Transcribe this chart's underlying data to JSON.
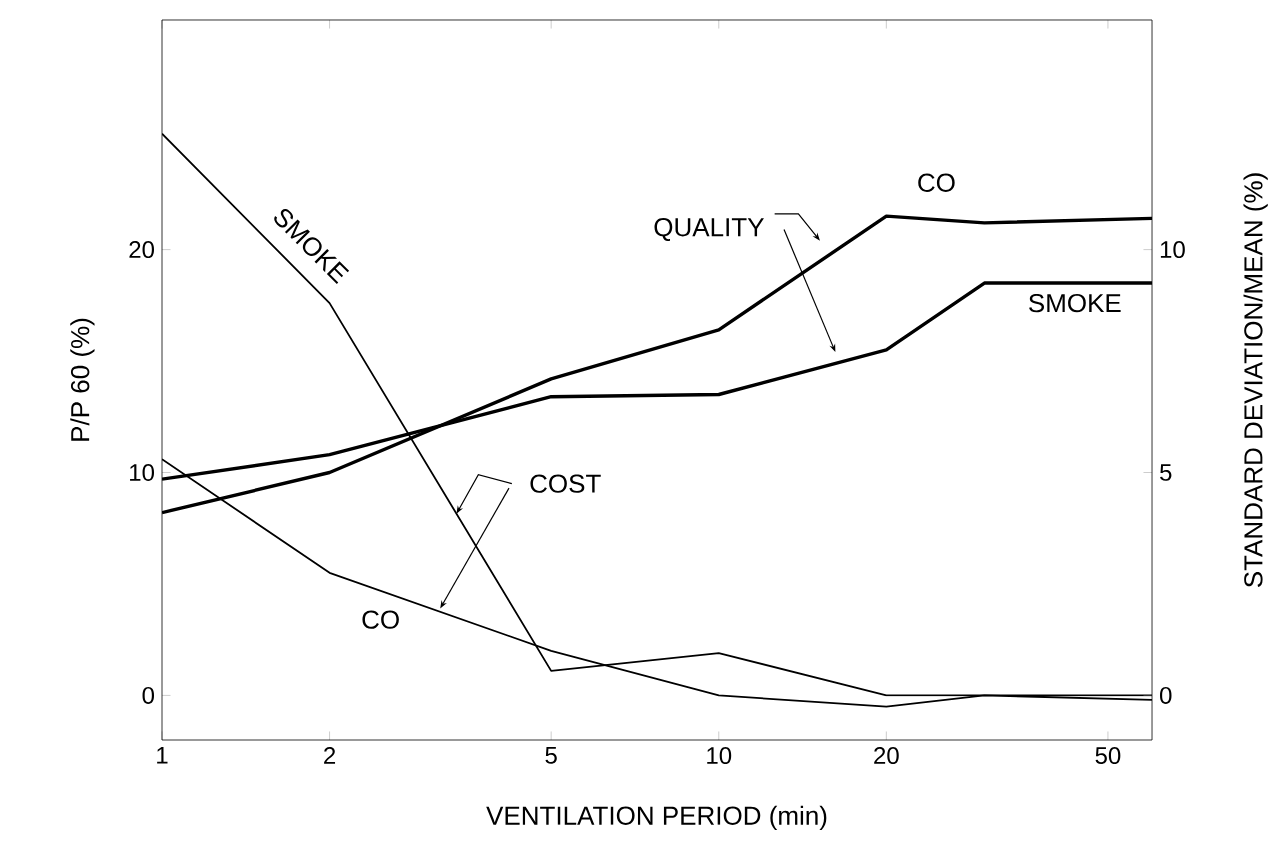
{
  "chart_data": {
    "type": "line",
    "xlabel": "VENTILATION PERIOD (min)",
    "ylabel": "P/P 60 (%)",
    "y2label": "STANDARD DEVIATION/MEAN (%)",
    "log": "x",
    "grid": false,
    "marker": "none",
    "line_style": "solid",
    "xlim": [
      1,
      60
    ],
    "xticks": [
      1,
      2,
      5,
      10,
      20,
      50
    ],
    "ylim": [
      -2,
      30.3
    ],
    "yticks": [
      0,
      10,
      20
    ],
    "y2lim": [
      -1,
      15.15
    ],
    "y2ticks": [
      0,
      5,
      10
    ],
    "series": [
      {
        "color": "#000000",
        "x": [
          1,
          2,
          5,
          10,
          20,
          30,
          60
        ],
        "values": [
          25.2,
          17.6,
          1.1,
          1.9,
          0,
          0,
          0
        ]
      },
      {
        "color": "#000000",
        "x": [
          1,
          2,
          5,
          10,
          20,
          30,
          60
        ],
        "values": [
          10.6,
          5.5,
          2.0,
          0,
          -0.5,
          0,
          -0.2
        ]
      },
      {
        "color": "#000000",
        "axis": "y2",
        "x": [
          1,
          2,
          5,
          10,
          20,
          30,
          60
        ],
        "values": [
          4.1,
          5.0,
          7.1,
          8.2,
          10.75,
          10.6,
          10.7
        ]
      },
      {
        "color": "#000000",
        "axis": "y2",
        "x": [
          1,
          2,
          5,
          10,
          20,
          30,
          60
        ],
        "values": [
          4.85,
          5.4,
          6.7,
          6.75,
          7.75,
          9.25,
          9.25
        ]
      }
    ],
    "annotations": [
      "SMOKE",
      "CO",
      {
        "text": "COST",
        "x": 3.38,
        "y": 8.15
      },
      "QUALITY",
      "CO",
      "SMOKE"
    ]
  }
}
